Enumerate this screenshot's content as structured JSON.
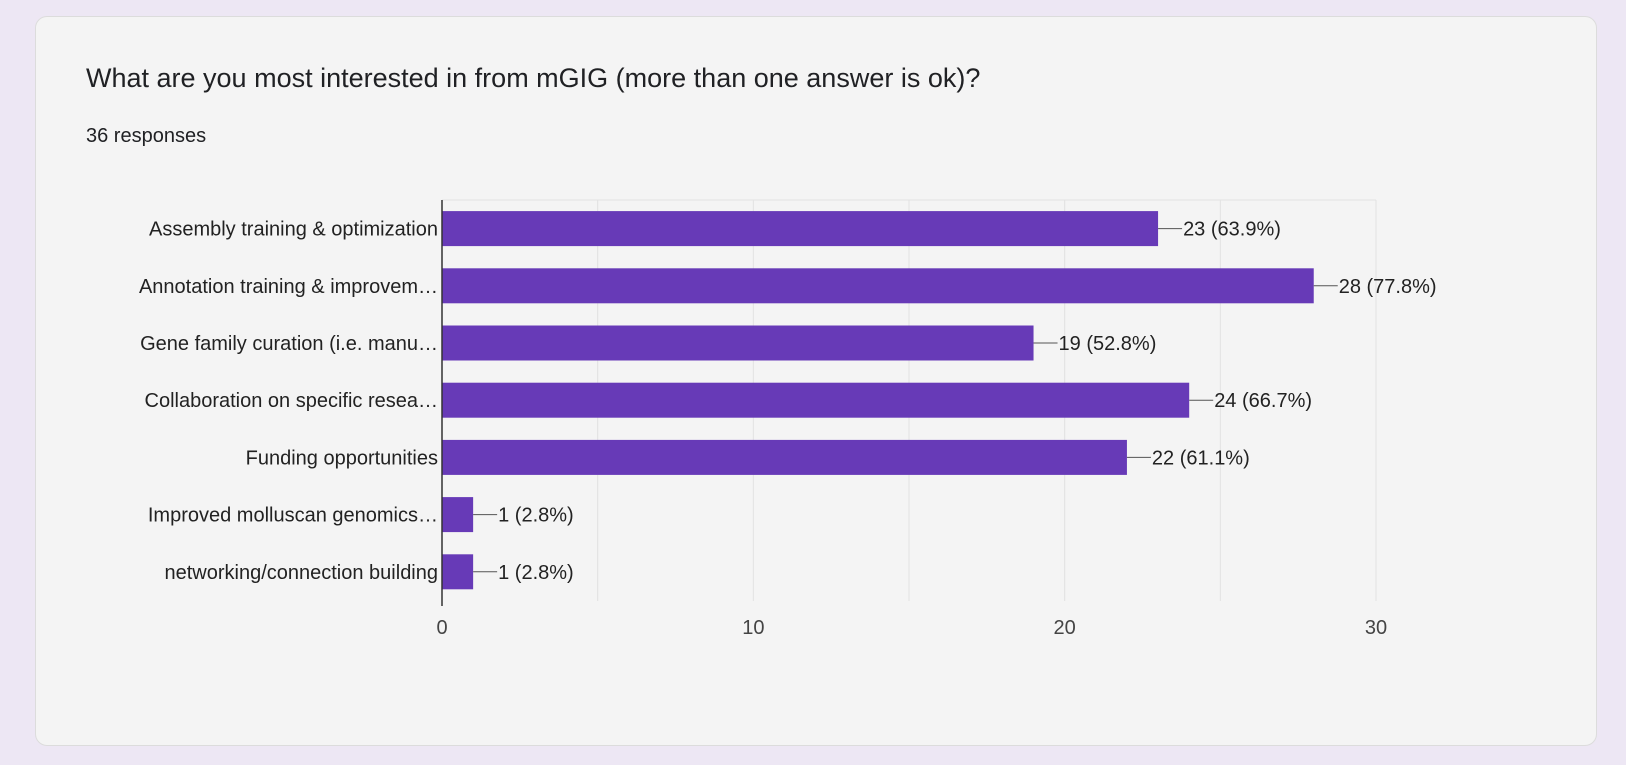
{
  "question": {
    "title": "What are you most interested in from mGIG (more than one answer is ok)?",
    "responses": "36 responses"
  },
  "colors": {
    "bar": "#673ab7",
    "grid": "#e2e2e2",
    "axis": "#333333",
    "text": "#222222",
    "tick_text": "#444444"
  },
  "chart_data": {
    "type": "bar",
    "orientation": "horizontal",
    "categories": [
      "Assembly training & optimization",
      "Annotation training & improvem…",
      "Gene family curation (i.e. manu…",
      "Collaboration on specific resea…",
      "Funding opportunities",
      "Improved molluscan genomics…",
      "networking/connection building"
    ],
    "values": [
      23,
      28,
      19,
      24,
      22,
      1,
      1
    ],
    "data_labels": [
      "23 (63.9%)",
      "28 (77.8%)",
      "19 (52.8%)",
      "24 (66.7%)",
      "22 (61.1%)",
      "1 (2.8%)",
      "1 (2.8%)"
    ],
    "xlim": [
      0,
      30
    ],
    "xticks": [
      0,
      10,
      20,
      30
    ],
    "xtick_labels": [
      "0",
      "10",
      "20",
      "30"
    ],
    "grid": true,
    "title": "",
    "xlabel": "",
    "ylabel": ""
  }
}
